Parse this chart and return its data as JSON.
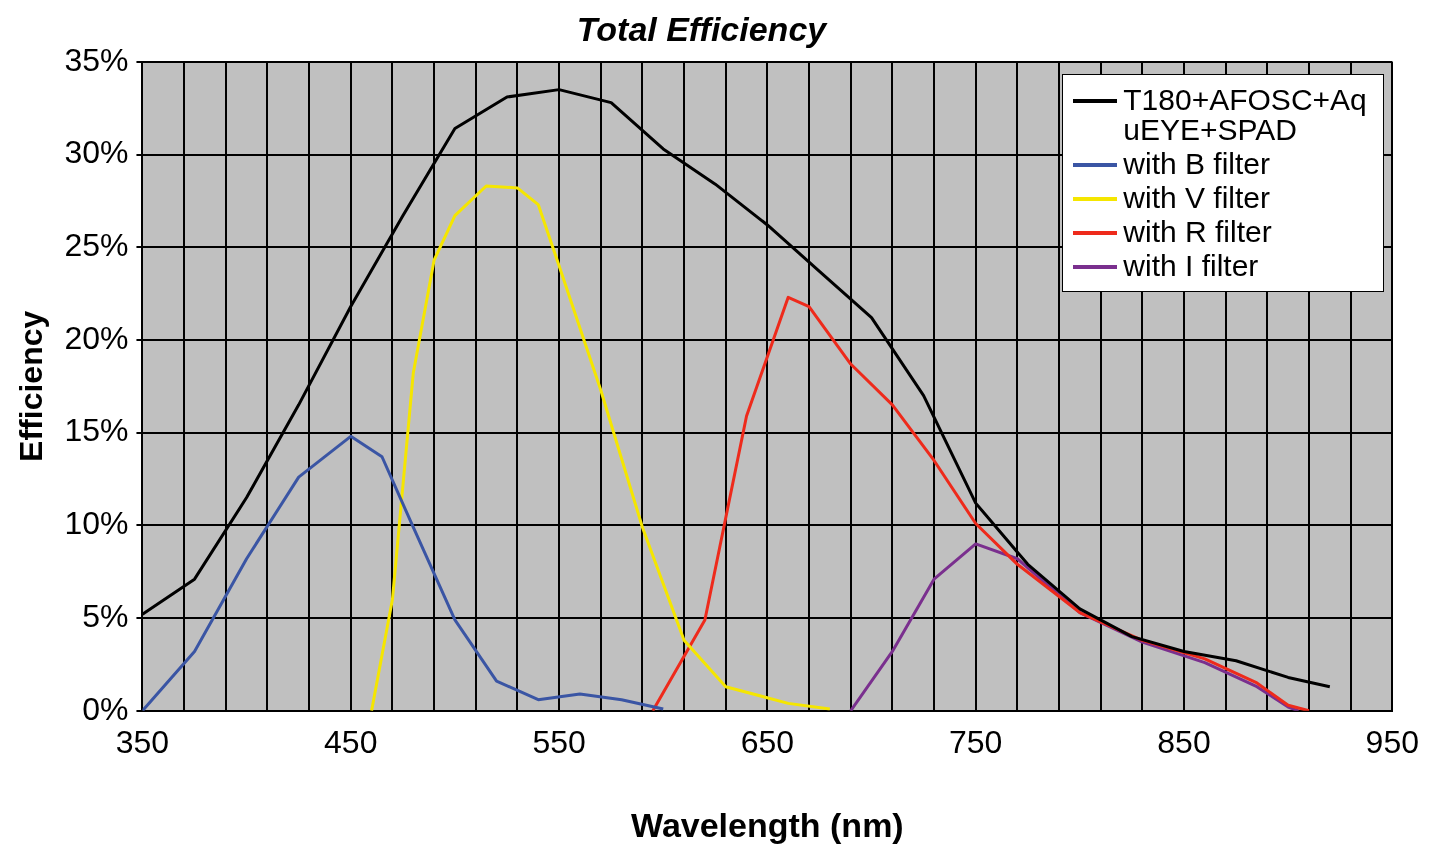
{
  "chart_data": {
    "type": "line",
    "title": "Total Efficiency",
    "xlabel": "Wavelength (nm)",
    "ylabel": "Efficiency",
    "xlim": [
      350,
      950
    ],
    "xticks": [
      350,
      {
        "value": 370,
        "label": null
      },
      {
        "value": 390,
        "label": null
      },
      {
        "value": 410,
        "label": null
      },
      {
        "value": 430,
        "label": null
      },
      450,
      {
        "value": 470,
        "label": null
      },
      {
        "value": 490,
        "label": null
      },
      {
        "value": 510,
        "label": null
      },
      {
        "value": 530,
        "label": null
      },
      550,
      {
        "value": 570,
        "label": null
      },
      {
        "value": 590,
        "label": null
      },
      {
        "value": 610,
        "label": null
      },
      {
        "value": 630,
        "label": null
      },
      650,
      {
        "value": 670,
        "label": null
      },
      {
        "value": 690,
        "label": null
      },
      {
        "value": 710,
        "label": null
      },
      {
        "value": 730,
        "label": null
      },
      750,
      {
        "value": 770,
        "label": null
      },
      {
        "value": 790,
        "label": null
      },
      {
        "value": 810,
        "label": null
      },
      {
        "value": 830,
        "label": null
      },
      850,
      {
        "value": 870,
        "label": null
      },
      {
        "value": 890,
        "label": null
      },
      {
        "value": 910,
        "label": null
      },
      {
        "value": 930,
        "label": null
      },
      950
    ],
    "ylim": [
      0,
      35
    ],
    "yticks": [
      {
        "value": 0,
        "label": "0%"
      },
      {
        "value": 5,
        "label": "5%"
      },
      {
        "value": 10,
        "label": "10%"
      },
      {
        "value": 15,
        "label": "15%"
      },
      {
        "value": 20,
        "label": "20%"
      },
      {
        "value": 25,
        "label": "25%"
      },
      {
        "value": 30,
        "label": "30%"
      },
      {
        "value": 35,
        "label": "35%"
      }
    ],
    "grid": true,
    "legend": "top right",
    "marker": "none",
    "line_style": "solid",
    "series": [
      {
        "name": "T180+AFOSC+AquEYE+SPAD",
        "color": "#000000",
        "x": [
          350,
          375,
          400,
          425,
          450,
          475,
          500,
          525,
          550,
          575,
          600,
          625,
          650,
          675,
          700,
          725,
          750,
          775,
          800,
          825,
          850,
          875,
          900,
          920
        ],
        "values": [
          5.2,
          7.1,
          11.5,
          16.5,
          21.8,
          26.7,
          31.4,
          33.1,
          33.5,
          32.8,
          30.3,
          28.4,
          26.2,
          23.7,
          21.2,
          17,
          11.2,
          7.9,
          5.5,
          4,
          3.2,
          2.7,
          1.8,
          1.3
        ]
      },
      {
        "name": "with B filter",
        "color": "#3a55a4",
        "x": [
          350,
          375,
          400,
          425,
          450,
          465,
          480,
          500,
          520,
          540,
          560,
          580,
          600
        ],
        "values": [
          0,
          3.2,
          8.2,
          12.6,
          14.8,
          13.7,
          9.9,
          4.9,
          1.6,
          0.6,
          0.9,
          0.6,
          0.1
        ]
      },
      {
        "name": "with V filter",
        "color": "#f5e600",
        "x": [
          460,
          470,
          480,
          490,
          500,
          515,
          530,
          540,
          550,
          570,
          590,
          610,
          630,
          660,
          680
        ],
        "values": [
          0,
          6,
          18.2,
          24.3,
          26.7,
          28.3,
          28.2,
          27.3,
          24,
          17.3,
          9.9,
          3.8,
          1.3,
          0.4,
          0.1
        ]
      },
      {
        "name": "with R filter",
        "color": "#ee2a1b",
        "x": [
          595,
          620,
          640,
          660,
          670,
          690,
          710,
          730,
          750,
          770,
          800,
          830,
          860,
          885,
          900,
          910
        ],
        "values": [
          0,
          4.9,
          15.9,
          22.3,
          21.8,
          18.7,
          16.5,
          13.5,
          10.1,
          7.9,
          5.3,
          3.8,
          2.8,
          1.5,
          0.3,
          0
        ]
      },
      {
        "name": "with I filter",
        "color": "#7a2f8e",
        "x": [
          690,
          710,
          730,
          750,
          770,
          800,
          830,
          860,
          885,
          900,
          905
        ],
        "values": [
          0,
          3.2,
          7.1,
          9,
          8.2,
          5.3,
          3.7,
          2.6,
          1.3,
          0.2,
          0
        ]
      }
    ]
  }
}
